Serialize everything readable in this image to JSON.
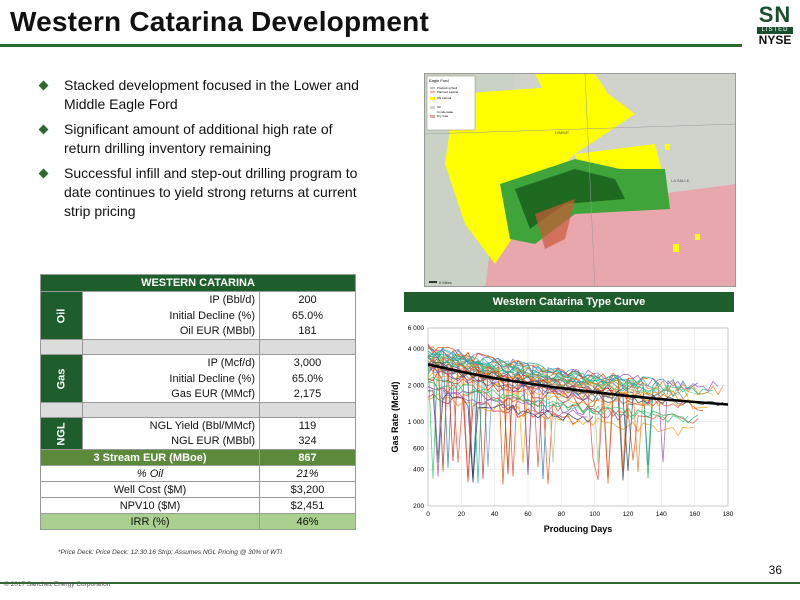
{
  "slide": {
    "title": "Western Catarina Development",
    "page_number": "36",
    "copyright": "© 2017 Sanchez Energy Corporation",
    "footnote": "*Price Deck:  Price Deck: 12.30.16 Strip; Assumes NGL Pricing @ 30% of WTI"
  },
  "logo": {
    "top": "SN",
    "middle": "LISTED",
    "bottom": "NYSE"
  },
  "bullets": [
    "Stacked development focused in the Lower and Middle Eagle Ford",
    "Significant amount of additional high rate of return drilling inventory remaining",
    "Successful infill and step-out drilling program to date continues to yield strong returns at current strip pricing"
  ],
  "map": {
    "legend_title": "Eagle Ford",
    "legend_items": [
      "Producing Well",
      "Planned Lateral",
      "SN Lateral",
      "Oil",
      "Condensate",
      "Dry Gas"
    ],
    "labels": [
      "DIMMIT",
      "LA SALLE"
    ],
    "scale": "0 Miles"
  },
  "table": {
    "header": "WESTERN CATARINA",
    "oil": {
      "group": "Oil",
      "rows": [
        {
          "label": "IP (Bbl/d)",
          "value": "200"
        },
        {
          "label": "Initial Decline (%)",
          "value": "65.0%"
        },
        {
          "label": "Oil EUR (MBbl)",
          "value": "181"
        }
      ]
    },
    "gas": {
      "group": "Gas",
      "rows": [
        {
          "label": "IP (Mcf/d)",
          "value": "3,000"
        },
        {
          "label": "Initial Decline (%)",
          "value": "65.0%"
        },
        {
          "label": "Gas EUR (MMcf)",
          "value": "2,175"
        }
      ]
    },
    "ngl": {
      "group": "NGL",
      "rows": [
        {
          "label": "NGL Yield (Bbl/MMcf)",
          "value": "119"
        },
        {
          "label": "NGL EUR (MBbl)",
          "value": "324"
        }
      ]
    },
    "summary": [
      {
        "label": "3 Stream EUR (MBoe)",
        "value": "867",
        "style": "hl"
      },
      {
        "label": "% Oil",
        "value": "21%",
        "style": "italic"
      },
      {
        "label": "Well Cost ($M)",
        "value": "$3,200",
        "style": "plain"
      },
      {
        "label": "NPV10 ($M)",
        "value": "$2,451",
        "style": "plain"
      },
      {
        "label": "IRR (%)",
        "value": "46%",
        "style": "hl2"
      }
    ]
  },
  "chart_data": {
    "type": "line",
    "title": "Western Catarina Type Curve",
    "xlabel": "Producing Days",
    "ylabel": "Gas Rate (Mcf/d)",
    "xlim": [
      0,
      180
    ],
    "ylim": [
      200,
      6000
    ],
    "yscale": "log",
    "xticks": [
      0,
      20,
      40,
      60,
      80,
      100,
      120,
      140,
      160,
      180
    ],
    "yticks": [
      200,
      400,
      600,
      1000,
      2000,
      4000,
      6000
    ],
    "ytick_labels": [
      "200",
      "400",
      "600",
      "1 000",
      "2 000",
      "4 000",
      "6 000"
    ],
    "type_curve": {
      "x": [
        0,
        20,
        40,
        60,
        80,
        100,
        120,
        140,
        160,
        180
      ],
      "y": [
        3000,
        2600,
        2300,
        2080,
        1900,
        1760,
        1640,
        1540,
        1460,
        1390
      ]
    },
    "well_count": 40
  },
  "colors": {
    "brand_green": "#1e5e2c",
    "accent_green": "#5b8a3a",
    "light_green": "#a9d08e"
  }
}
